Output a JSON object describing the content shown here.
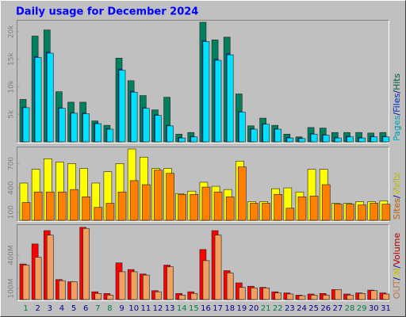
{
  "chart_data": {
    "type": "bar",
    "title": "Daily usage for December 2024",
    "categories": [
      "1",
      "2",
      "3",
      "4",
      "5",
      "6",
      "7",
      "8",
      "9",
      "10",
      "11",
      "12",
      "13",
      "14",
      "15",
      "16",
      "17",
      "18",
      "19",
      "20",
      "21",
      "22",
      "23",
      "24",
      "25",
      "26",
      "27",
      "28",
      "29",
      "30",
      "31"
    ],
    "category_colors": [
      "#008040",
      "#00008b",
      "#00008b",
      "#00008b",
      "#00008b",
      "#00008b",
      "#008040",
      "#008040",
      "#00008b",
      "#00008b",
      "#00008b",
      "#00008b",
      "#00008b",
      "#008040",
      "#008040",
      "#00008b",
      "#00008b",
      "#00008b",
      "#00008b",
      "#00008b",
      "#008040",
      "#008040",
      "#00008b",
      "#00008b",
      "#00008b",
      "#00008b",
      "#00008b",
      "#008040",
      "#008040",
      "#00008b",
      "#00008b"
    ],
    "label_separator": "/",
    "panels": [
      {
        "type": "bar",
        "ylim": [
          0,
          22000
        ],
        "yticks": [
          {
            "value": 5000,
            "label": "5k"
          },
          {
            "value": 10000,
            "label": "10k"
          },
          {
            "value": 15000,
            "label": "15k"
          },
          {
            "value": 20000,
            "label": "20k"
          }
        ],
        "series": [
          {
            "name": "Hits",
            "color": "#00805c",
            "values": [
              7700,
              19200,
              20300,
              9100,
              7200,
              7200,
              3800,
              3000,
              15200,
              11100,
              8400,
              5800,
              8100,
              1400,
              1700,
              21700,
              18500,
              19000,
              8700,
              2900,
              4300,
              3000,
              1400,
              900,
              2600,
              2500,
              1700,
              1700,
              1700,
              1600,
              1700
            ]
          },
          {
            "name": "Files",
            "color": "#0040ff",
            "values": [
              6300,
              15500,
              16300,
              6200,
              5300,
              5200,
              3400,
              2400,
              13200,
              9200,
              6200,
              4900,
              3000,
              800,
              1000,
              18400,
              15000,
              16000,
              5500,
              2400,
              3300,
              2400,
              800,
              700,
              1500,
              1300,
              800,
              1000,
              800,
              1000,
              1000
            ]
          },
          {
            "name": "Pages",
            "color": "#00e0ff",
            "values": [
              6200,
              15300,
              16100,
              6100,
              5200,
              5100,
              3300,
              2300,
              13000,
              9000,
              6100,
              4800,
              2900,
              700,
              900,
              18200,
              14800,
              15800,
              5400,
              2300,
              3200,
              2300,
              700,
              600,
              1400,
              1200,
              700,
              900,
              700,
              900,
              900
            ]
          }
        ]
      },
      {
        "type": "bar",
        "ylim": [
          0,
          900
        ],
        "yticks": [
          100,
          400,
          700
        ],
        "series": [
          {
            "name": "Visits",
            "color": "#ffff00",
            "values": [
              460,
              630,
              760,
              720,
              700,
              640,
              460,
              600,
              700,
              880,
              780,
              640,
              640,
              330,
              360,
              470,
              420,
              380,
              730,
              230,
              230,
              390,
              400,
              350,
              630,
              630,
              210,
              210,
              230,
              230,
              240
            ]
          },
          {
            "name": "Sites",
            "color": "#ff8000",
            "values": [
              220,
              350,
              350,
              350,
              380,
              290,
              160,
              210,
              350,
              490,
              440,
              620,
              580,
              320,
              320,
              410,
              350,
              290,
              660,
              210,
              210,
              320,
              150,
              290,
              300,
              440,
              200,
              200,
              190,
              210,
              200
            ]
          }
        ]
      },
      {
        "type": "bar",
        "ylim": [
          0,
          670
        ],
        "yticks": [
          {
            "value": 100,
            "label": "100M"
          },
          {
            "value": 400,
            "label": "400M"
          }
        ],
        "series": [
          {
            "name": "Volume",
            "color": "#ff0000",
            "values": [
              320,
              500,
              620,
              180,
              160,
              650,
              70,
              55,
              330,
              270,
              230,
              80,
              310,
              55,
              70,
              450,
              620,
              260,
              150,
              120,
              110,
              70,
              60,
              40,
              50,
              55,
              90,
              50,
              60,
              85,
              60
            ]
          },
          {
            "name": "IN",
            "color": "#ffff00",
            "values": [
              0,
              0,
              0,
              0,
              0,
              0,
              0,
              0,
              0,
              0,
              0,
              0,
              0,
              0,
              0,
              0,
              0,
              0,
              0,
              0,
              0,
              0,
              0,
              0,
              0,
              0,
              0,
              0,
              0,
              0,
              0
            ]
          },
          {
            "name": "OUT",
            "color": "#f0a060",
            "values": [
              310,
              380,
              580,
              170,
              160,
              640,
              55,
              40,
              250,
              250,
              220,
              70,
              295,
              40,
              55,
              350,
              580,
              240,
              110,
              105,
              105,
              60,
              50,
              35,
              40,
              40,
              90,
              40,
              55,
              80,
              50
            ]
          }
        ]
      }
    ]
  }
}
